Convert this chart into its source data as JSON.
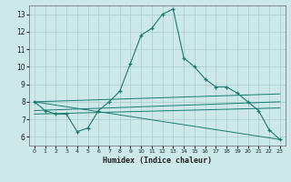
{
  "xlabel": "Humidex (Indice chaleur)",
  "background_color": "#cce8e8",
  "grid_color": "#aacccc",
  "line_color": "#1a7a6e",
  "xlim": [
    -0.5,
    23.5
  ],
  "ylim": [
    5.5,
    13.5
  ],
  "yticks": [
    6,
    7,
    8,
    9,
    10,
    11,
    12,
    13
  ],
  "xticks": [
    0,
    1,
    2,
    3,
    4,
    5,
    6,
    7,
    8,
    9,
    10,
    11,
    12,
    13,
    14,
    15,
    16,
    17,
    18,
    19,
    20,
    21,
    22,
    23
  ],
  "main_x": [
    0,
    1,
    2,
    3,
    4,
    5,
    6,
    7,
    8,
    9,
    10,
    11,
    12,
    13,
    14,
    15,
    16,
    17,
    18,
    19,
    20,
    21,
    22,
    23
  ],
  "main_y": [
    8.0,
    7.5,
    7.3,
    7.3,
    6.3,
    6.5,
    7.5,
    8.0,
    8.6,
    10.2,
    11.8,
    12.2,
    13.0,
    13.3,
    10.5,
    10.0,
    9.3,
    8.85,
    8.85,
    8.5,
    8.0,
    7.5,
    6.4,
    5.85
  ],
  "extra_lines": [
    {
      "x": [
        0,
        23
      ],
      "y": [
        8.0,
        5.85
      ]
    },
    {
      "x": [
        0,
        23
      ],
      "y": [
        8.0,
        8.45
      ]
    },
    {
      "x": [
        0,
        23
      ],
      "y": [
        7.5,
        8.0
      ]
    },
    {
      "x": [
        0,
        23
      ],
      "y": [
        7.3,
        7.65
      ]
    }
  ]
}
